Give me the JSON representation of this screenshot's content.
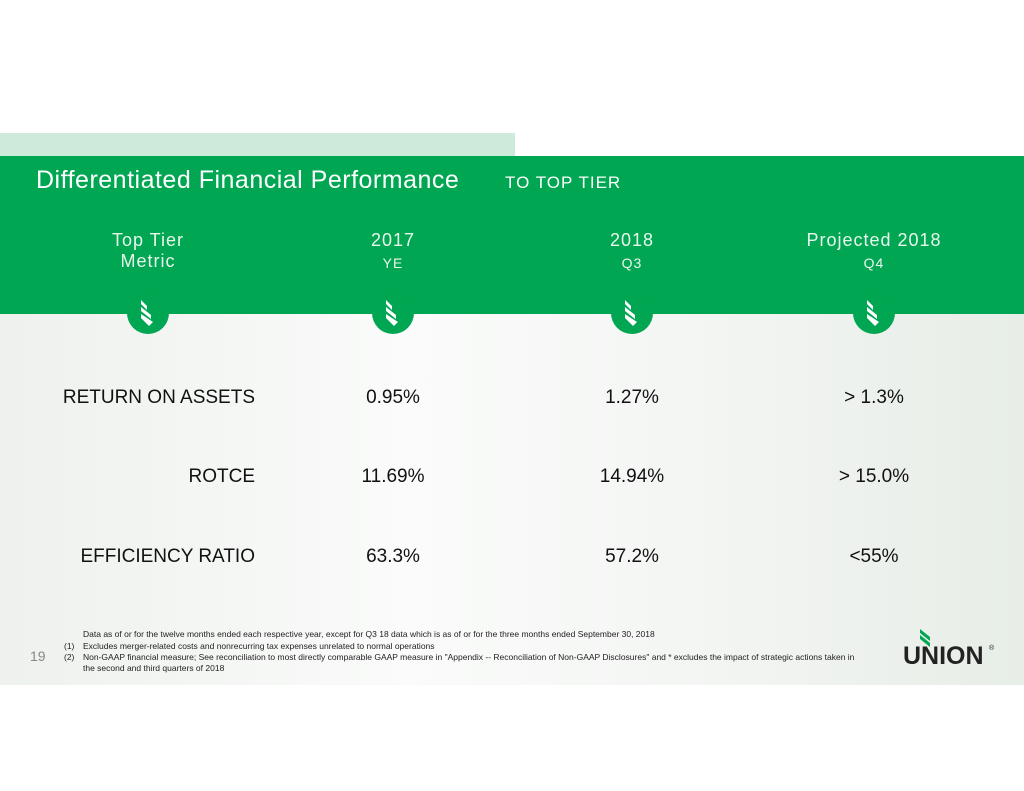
{
  "header": {
    "title": "Differentiated Financial Performance",
    "subtitle": "TO TOP TIER"
  },
  "columns": [
    {
      "label": "Top Tier",
      "sub": "Metric"
    },
    {
      "label": "2017",
      "sub": "YE"
    },
    {
      "label": "2018",
      "sub": "Q3"
    },
    {
      "label": "Projected 2018",
      "sub": "Q4"
    }
  ],
  "rows": [
    {
      "metric": "RETURN ON ASSETS",
      "v2017": "0.95%",
      "v2018": "1.27%",
      "proj": "> 1.3%"
    },
    {
      "metric": "ROTCE",
      "v2017": "11.69%",
      "v2018": "14.94%",
      "proj": "> 15.0%"
    },
    {
      "metric": "EFFICIENCY RATIO",
      "v2017": "63.3%",
      "v2018": "57.2%",
      "proj": "<55%"
    }
  ],
  "footnotes": {
    "intro": "Data as of or for the twelve months ended each respective year, except for Q3 18 data which is as of or for the three months ended September 30, 2018",
    "n1_num": "(1)",
    "n1": "Excludes merger-related costs and nonrecurring tax expenses unrelated to normal operations",
    "n2_num": "(2)",
    "n2": "Non-GAAP financial measure; See reconciliation to most directly comparable GAAP measure in \"Appendix -- Reconciliation of Non-GAAP Disclosures\"  and * excludes the impact of strategic actions taken in",
    "n2b": "the second and third quarters of 2018"
  },
  "page_number": "19",
  "logo": {
    "text": "UNION",
    "mark": "®"
  },
  "colors": {
    "brand": "#00a651"
  }
}
